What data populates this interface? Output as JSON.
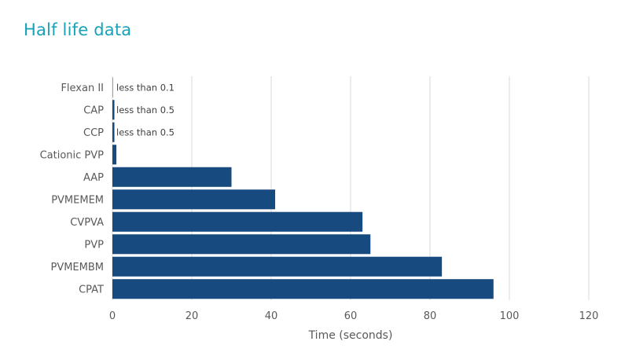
{
  "chart_data": {
    "type": "bar",
    "orientation": "horizontal",
    "title": "Half life data",
    "xlabel": "Time (seconds)",
    "ylabel": "",
    "xlim": [
      0,
      120
    ],
    "x_ticks": [
      0,
      20,
      40,
      60,
      80,
      100,
      120
    ],
    "grid": true,
    "categories": [
      "Flexan II",
      "CAP",
      "CCP",
      "Cationic PVP",
      "AAP",
      "PVMEMEM",
      "CVPVA",
      "PVP",
      "PVMEMBM",
      "CPAT"
    ],
    "values": [
      0.1,
      0.5,
      0.5,
      1,
      30,
      41,
      63,
      65,
      83,
      96
    ],
    "data_labels": {
      "Flexan II": "less than 0.1",
      "CAP": "less than 0.5",
      "CCP": "less than 0.5"
    },
    "colors": {
      "bar": "#174a7e",
      "title": "#17a2b8",
      "grid": "#d9d9d9"
    }
  }
}
